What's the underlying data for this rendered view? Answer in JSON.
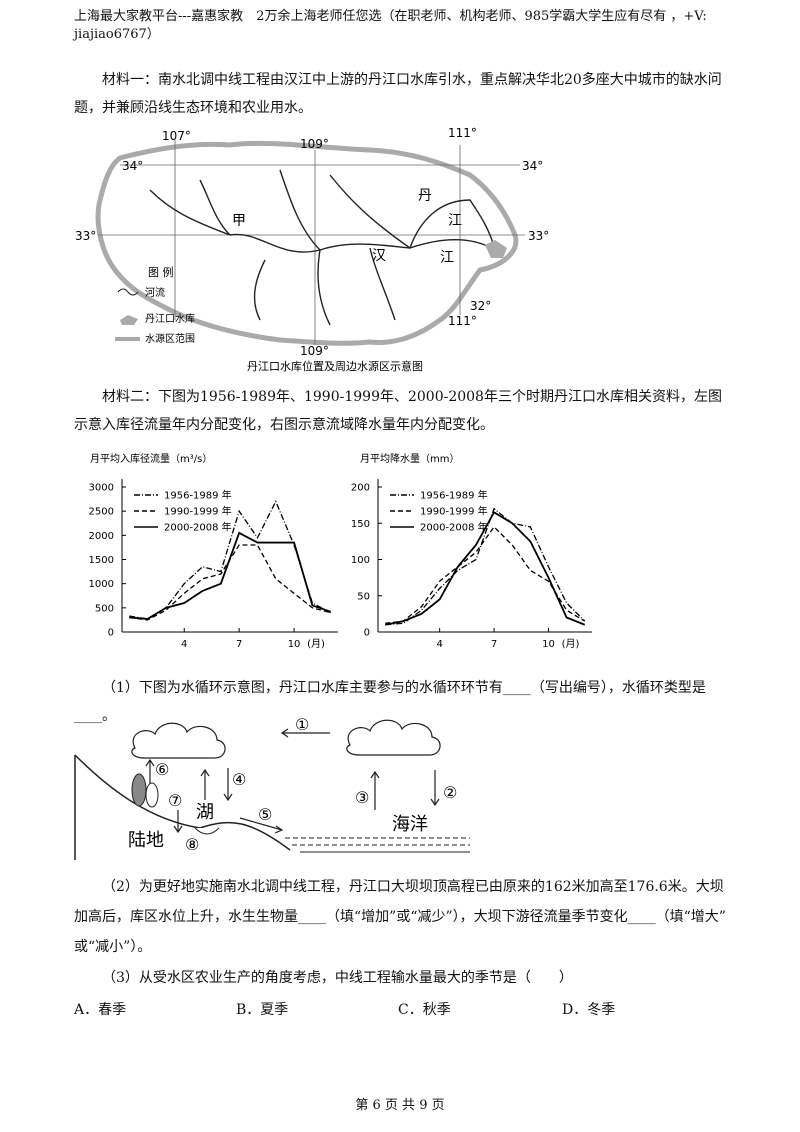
{
  "header": {
    "line1": "上海最大家教平台---嘉惠家教　2万余上海老师任您选（在职老师、机构老师、985学霸大学生应有尽有 ，+V:",
    "line2": "jiajiao6767）"
  },
  "material1": "材料一：南水北调中线工程由汉江中上游的丹江口水库引水，重点解决华北20多座大中城市的缺水问题，并兼顾沿线生态环境和农业用水。",
  "map": {
    "lon107": "107°",
    "lon109_top": "109°",
    "lon109_bottom": "109°",
    "lon111_top": "111°",
    "lon111_bottom": "111°",
    "lat34_left": "34°",
    "lat34_right": "34°",
    "lat33_left": "33°",
    "lat33_right": "33°",
    "lat32": "32°",
    "jia": "甲",
    "dan": "丹",
    "jiang1": "江",
    "han": "汉",
    "jiang2": "江",
    "legend_title": "图 例",
    "legend_river": "河流",
    "legend_reservoir": "丹江口水库",
    "legend_boundary": "水源区范围",
    "caption": "丹江口水库位置及周边水源区示意图"
  },
  "material2": "材料二：下图为1956-1989年、1990-1999年、2000-2008年三个时期丹江口水库相关资料，左图示意入库径流量年内分配变化，右图示意流域降水量年内分配变化。",
  "chart_data": [
    {
      "type": "line",
      "title": "月平均入库径流量（m³/s）",
      "xlabel": "(月)",
      "x": [
        1,
        2,
        3,
        4,
        5,
        6,
        7,
        8,
        9,
        10,
        11,
        12
      ],
      "xlim": [
        0.6,
        12.4
      ],
      "xticks": [
        4,
        7,
        10
      ],
      "ylim": [
        0,
        3000
      ],
      "yticks": [
        0,
        500,
        1000,
        1500,
        2000,
        2500,
        3000
      ],
      "legend": "top-left",
      "series": [
        {
          "name": "1956-1989 年",
          "color": "#000000",
          "style": "dashdot",
          "values": [
            330,
            270,
            500,
            1000,
            1350,
            1250,
            2500,
            1950,
            2700,
            1800,
            600,
            400
          ]
        },
        {
          "name": "1990-1999 年",
          "color": "#000000",
          "style": "dashed",
          "values": [
            300,
            250,
            450,
            800,
            1100,
            1200,
            1800,
            1800,
            1100,
            800,
            500,
            400
          ]
        },
        {
          "name": "2000-2008 年",
          "color": "#000000",
          "style": "solid",
          "values": [
            300,
            270,
            500,
            600,
            850,
            1000,
            2050,
            1850,
            1850,
            1850,
            550,
            420
          ]
        }
      ]
    },
    {
      "type": "line",
      "title": "月平均降水量（mm）",
      "xlabel": "(月)",
      "x": [
        1,
        2,
        3,
        4,
        5,
        6,
        7,
        8,
        9,
        10,
        11,
        12
      ],
      "xlim": [
        0.6,
        12.4
      ],
      "xticks": [
        4,
        7,
        10
      ],
      "ylim": [
        0,
        200
      ],
      "yticks": [
        0,
        50,
        100,
        150,
        200
      ],
      "legend": "top-left",
      "series": [
        {
          "name": "1956-1989 年",
          "color": "#000000",
          "style": "dashdot",
          "values": [
            10,
            12,
            30,
            60,
            85,
            100,
            170,
            150,
            145,
            90,
            40,
            15
          ]
        },
        {
          "name": "1990-1999 年",
          "color": "#000000",
          "style": "dashed",
          "values": [
            12,
            15,
            35,
            70,
            90,
            110,
            145,
            120,
            85,
            70,
            30,
            15
          ]
        },
        {
          "name": "2000-2008 年",
          "color": "#000000",
          "style": "solid",
          "values": [
            10,
            15,
            25,
            45,
            90,
            120,
            165,
            150,
            125,
            75,
            20,
            10
          ]
        }
      ]
    }
  ],
  "q1": "（1）下图为水循环示意图，丹江口水库主要参与的水循环环节有____（写出编号），水循环类型是____。",
  "diagram": {
    "n1": "①",
    "n2": "②",
    "n3": "③",
    "n4": "④",
    "n5": "⑤",
    "n6": "⑥",
    "n7": "⑦",
    "n8": "⑧",
    "lake": "湖",
    "land": "陆地",
    "sea": "海洋"
  },
  "q2": "（2）为更好地实施南水北调中线工程，丹江口大坝坝顶高程已由原来的162米加高至176.6米。大坝加高后，库区水位上升，水生生物量____（填“增加”或“减少”），大坝下游径流量季节变化____（填“增大”或“减小”）。",
  "q3": "（3）从受水区农业生产的角度考虑，中线工程输水量最大的季节是（　　）",
  "options": [
    "A．春季",
    "B．夏季",
    "C．秋季",
    "D．冬季"
  ],
  "footer": "第 6 页 共 9 页"
}
